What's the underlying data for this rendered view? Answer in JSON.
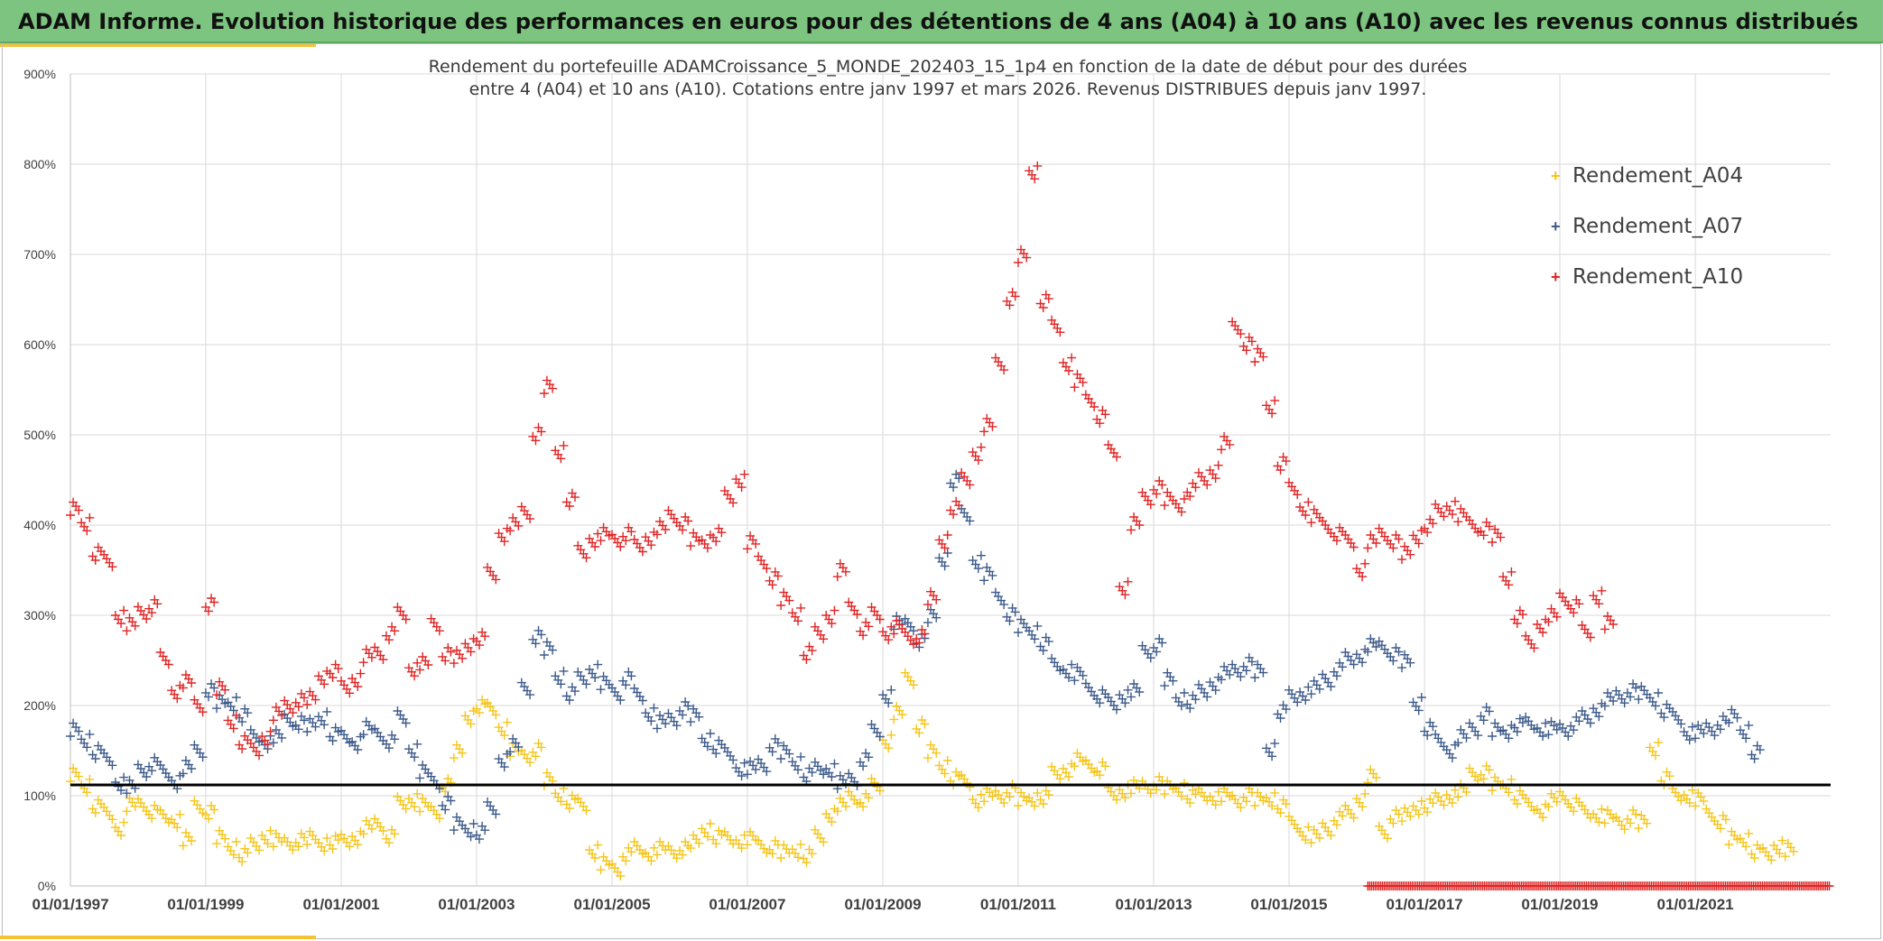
{
  "header": {
    "title": "ADAM Informe. Evolution historique des performances en euros pour des détentions de 4 ans (A04) à 10 ans (A10) avec les revenus connus distribués"
  },
  "colors": {
    "header_bg": "#7cc47f",
    "accent": "#f2c335",
    "A04": "#f5c518",
    "A07": "#3c5a8a",
    "A10": "#e02424",
    "reference_line": "#000000"
  },
  "chart_data": {
    "type": "scatter",
    "title_line1": "Rendement du portefeuille ADAMCroissance_5_MONDE_202403_15_1p4  en fonction de la date de début pour des durées",
    "title_line2": "entre 4 (A04) et 10 ans (A10). Cotations entre janv 1997 et mars 2026. Revenus DISTRIBUES depuis janv 1997.",
    "x_ticks": [
      "01/01/1997",
      "01/01/1999",
      "01/01/2001",
      "01/01/2003",
      "01/01/2005",
      "01/01/2007",
      "01/01/2009",
      "01/01/2011",
      "01/01/2013",
      "01/01/2015",
      "01/01/2017",
      "01/01/2019",
      "01/01/2021"
    ],
    "xlim": [
      "1997-01-01",
      "2023-01-01"
    ],
    "y_ticks": [
      "0%",
      "100%",
      "200%",
      "300%",
      "400%",
      "500%",
      "600%",
      "700%",
      "800%",
      "900%"
    ],
    "ylim": [
      0,
      900
    ],
    "grid": true,
    "legend_position": "top-right",
    "reference_line_y": 112,
    "series": [
      {
        "name": "Rendement_A04",
        "color": "#f5c518",
        "x_start": "1997-01-01",
        "step_months": 2,
        "values": [
          125,
          110,
          90,
          80,
          65,
          90,
          92,
          82,
          75,
          72,
          50,
          88,
          80,
          55,
          40,
          35,
          45,
          55,
          50,
          48,
          50,
          55,
          45,
          50,
          50,
          55,
          65,
          70,
          55,
          90,
          95,
          88,
          82,
          110,
          150,
          185,
          200,
          195,
          175,
          150,
          145,
          150,
          120,
          100,
          95,
          90,
          40,
          25,
          20,
          35,
          40,
          35,
          40,
          38,
          40,
          50,
          60,
          55,
          52,
          50,
          52,
          45,
          42,
          40,
          38,
          35,
          55,
          80,
          90,
          100,
          95,
          110,
          160,
          190,
          230,
          175,
          150,
          130,
          120,
          115,
          95,
          100,
          100,
          105,
          98,
          95,
          100,
          125,
          130,
          140,
          135,
          130,
          100,
          105,
          108,
          110,
          112,
          110,
          105,
          100,
          100,
          98,
          100,
          95,
          100,
          98,
          95,
          90,
          70,
          60,
          55,
          65,
          75,
          80,
          95,
          120,
          60,
          75,
          80,
          85,
          90,
          95,
          100,
          105,
          125,
          125,
          115,
          110,
          100,
          90,
          85,
          95,
          100,
          90,
          80,
          78,
          75,
          70,
          75,
          72,
          150,
          120,
          100,
          100,
          95,
          80,
          70,
          55,
          50,
          40,
          35,
          45,
          40
        ]
      },
      {
        "name": "Rendement_A07",
        "color": "#3c5a8a",
        "x_start": "1997-01-01",
        "step_months": 2,
        "values": [
          175,
          160,
          150,
          140,
          115,
          110,
          130,
          135,
          125,
          115,
          130,
          150,
          215,
          205,
          200,
          190,
          165,
          160,
          165,
          185,
          180,
          180,
          185,
          170,
          165,
          160,
          175,
          170,
          160,
          185,
          150,
          125,
          115,
          90,
          70,
          60,
          60,
          85,
          140,
          155,
          220,
          275,
          265,
          230,
          215,
          230,
          240,
          225,
          215,
          230,
          210,
          190,
          180,
          185,
          195,
          190,
          160,
          155,
          145,
          130,
          130,
          135,
          155,
          150,
          135,
          125,
          130,
          130,
          115,
          120,
          140,
          170,
          210,
          290,
          290,
          270,
          300,
          360,
          450,
          410,
          360,
          345,
          320,
          300,
          290,
          280,
          270,
          245,
          240,
          235,
          220,
          210,
          200,
          210,
          215,
          260,
          265,
          230,
          205,
          205,
          215,
          225,
          235,
          240,
          245,
          240,
          150,
          195,
          210,
          215,
          220,
          230,
          240,
          250,
          255,
          265,
          265,
          255,
          250,
          200,
          175,
          160,
          150,
          165,
          175,
          190,
          175,
          170,
          180,
          180,
          175,
          175,
          175,
          180,
          185,
          195,
          205,
          210,
          215,
          215,
          205,
          195,
          185,
          170,
          170,
          175,
          180,
          190,
          170,
          150
        ]
      },
      {
        "name": "Rendement_A10",
        "color": "#e02424",
        "x_start": "1997-01-01",
        "step_months": 2,
        "values": [
          420,
          400,
          370,
          360,
          300,
          290,
          305,
          310,
          250,
          215,
          225,
          200,
          310,
          220,
          180,
          160,
          150,
          165,
          190,
          200,
          205,
          210,
          230,
          240,
          220,
          230,
          255,
          260,
          280,
          300,
          240,
          245,
          290,
          255,
          255,
          265,
          275,
          345,
          390,
          400,
          415,
          500,
          555,
          480,
          430,
          370,
          385,
          390,
          385,
          390,
          375,
          385,
          395,
          410,
          400,
          385,
          380,
          390,
          430,
          450,
          380,
          360,
          340,
          320,
          300,
          260,
          280,
          300,
          350,
          310,
          285,
          300,
          280,
          285,
          275,
          275,
          320,
          380,
          420,
          450,
          480,
          510,
          580,
          650,
          700,
          790,
          650,
          620,
          580,
          560,
          540,
          520,
          480,
          330,
          400,
          430,
          440,
          430,
          420,
          440,
          450,
          460,
          490,
          620,
          600,
          590,
          530,
          470,
          440,
          420,
          410,
          400,
          390,
          380,
          350,
          380,
          390,
          380,
          370,
          385,
          400,
          415,
          420,
          410,
          400,
          395,
          390,
          340,
          300,
          270,
          290,
          300,
          320,
          310,
          280,
          320,
          290
        ]
      }
    ]
  },
  "bottom_band": {
    "x_start": "2016-03-01",
    "x_end": "2023-01-01",
    "y": 0,
    "color": "#e02424"
  }
}
